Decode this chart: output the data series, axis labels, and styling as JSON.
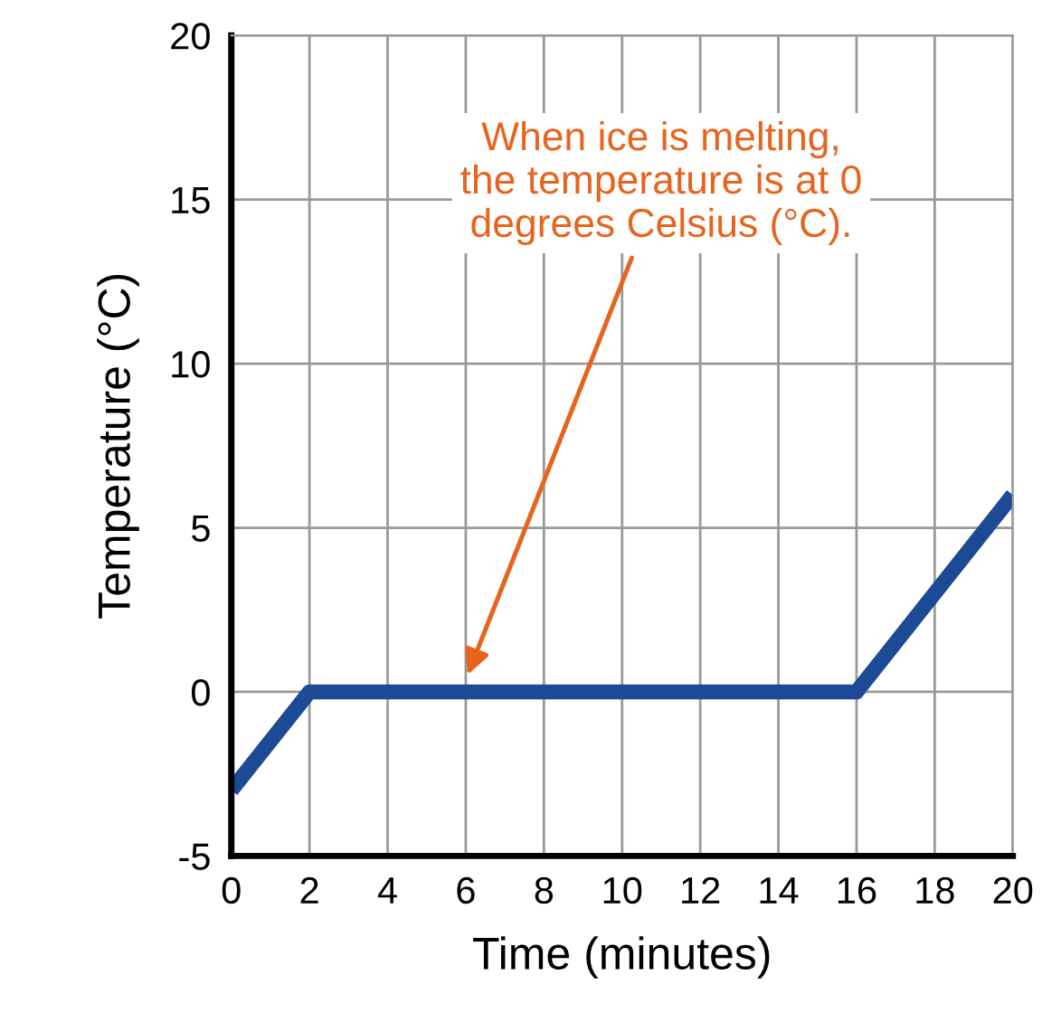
{
  "chart_data": {
    "type": "line",
    "xlabel": "Time (minutes)",
    "ylabel": "Temperature (°C)",
    "x": [
      0,
      2,
      16,
      20
    ],
    "series": [
      {
        "color": "#1c4a94",
        "values": [
          -3,
          0,
          0,
          6
        ]
      }
    ],
    "xlim": [
      0,
      20
    ],
    "ylim": [
      -5,
      20
    ],
    "xticks": [
      0,
      2,
      4,
      6,
      8,
      10,
      12,
      14,
      16,
      18,
      20
    ],
    "yticks": [
      -5,
      0,
      5,
      10,
      15,
      20
    ],
    "grid": true,
    "line_style": "solid",
    "marker": "none",
    "annotations": [
      "When ice is melting,\nthe temperature is at 0\ndegrees Celsius (°C)."
    ]
  }
}
